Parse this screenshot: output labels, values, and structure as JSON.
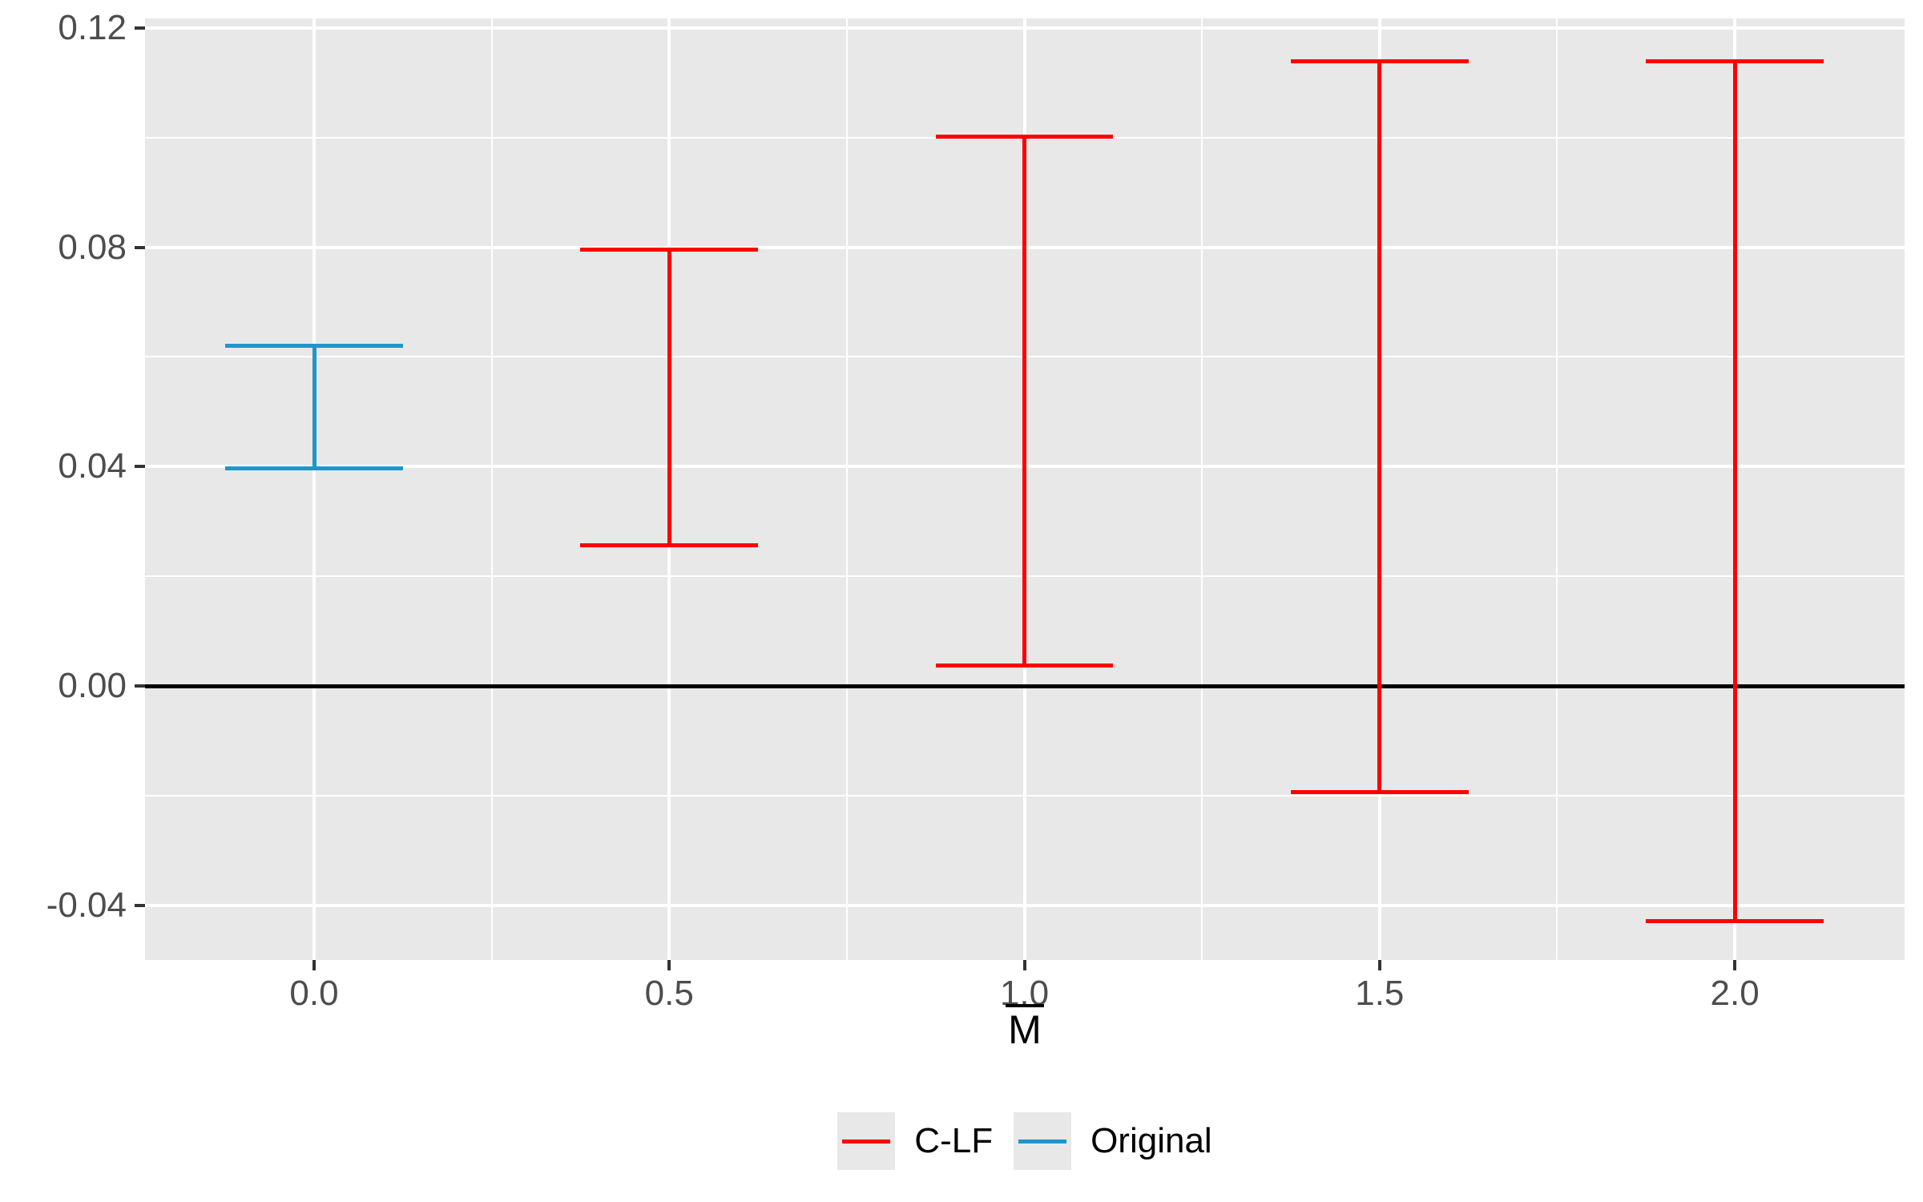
{
  "chart_data": {
    "type": "errorbar",
    "title": "",
    "xlabel": "M̄",
    "xlabel_base": "M",
    "ylabel": "",
    "x_tick_labels": [
      "0.0",
      "0.5",
      "1.0",
      "1.5",
      "2.0"
    ],
    "x_tick_values": [
      0.0,
      0.5,
      1.0,
      1.5,
      2.0
    ],
    "y_tick_labels": [
      "0.12",
      "0.08",
      "0.04",
      "0.00",
      "-0.04"
    ],
    "y_tick_values": [
      0.12,
      0.08,
      0.04,
      0.0,
      -0.04
    ],
    "y_minor_values": [
      0.1,
      0.06,
      0.02,
      -0.02
    ],
    "x_minor_values": [
      0.25,
      0.75,
      1.25,
      1.75
    ],
    "xlim": [
      -0.238,
      2.239
    ],
    "ylim": [
      -0.0499,
      0.1217
    ],
    "hline_y": 0.0,
    "cap_width_x": 0.25,
    "grid": true,
    "legend_position": "bottom",
    "points": [
      {
        "x": 0.0,
        "series": "Original",
        "low": 0.0397,
        "high": 0.062
      },
      {
        "x": 0.5,
        "series": "C-LF",
        "low": 0.0257,
        "high": 0.0796
      },
      {
        "x": 1.0,
        "series": "C-LF",
        "low": 0.0037,
        "high": 0.1002
      },
      {
        "x": 1.5,
        "series": "C-LF",
        "low": -0.0193,
        "high": 0.1139
      },
      {
        "x": 2.0,
        "series": "C-LF",
        "low": -0.0428,
        "high": 0.1139
      }
    ],
    "colors": {
      "C-LF": "#FF0000",
      "Original": "#1E96CC"
    },
    "legend": [
      {
        "label": "C-LF",
        "color": "#FF0000"
      },
      {
        "label": "Original",
        "color": "#1E96CC"
      }
    ],
    "panel_background": "#E8E8E8",
    "gridline_color": "#FFFFFF",
    "zero_line_color": "#000000",
    "axis_text_color": "#4D4D4D",
    "tick_color": "#333333"
  }
}
